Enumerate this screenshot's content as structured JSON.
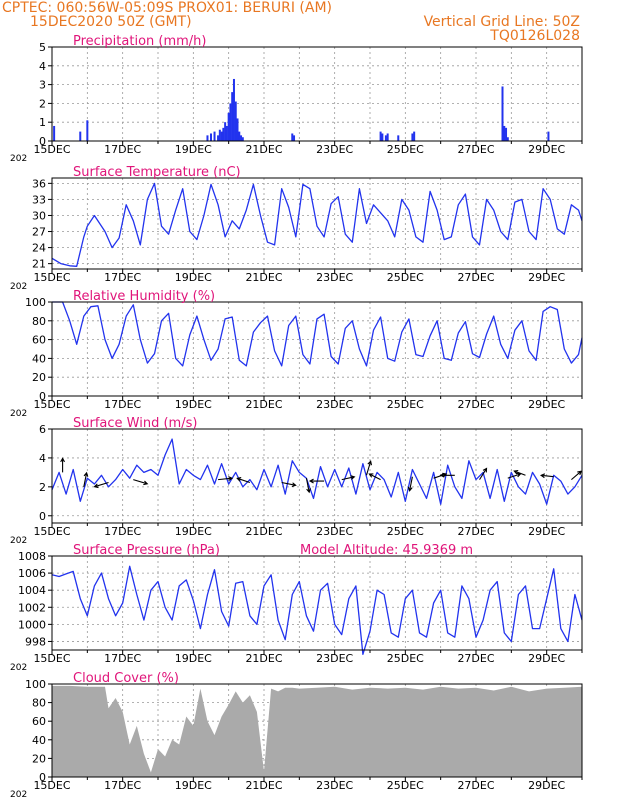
{
  "header": {
    "line1": "CPTEC:    060:56W-05:09S   PROX01: BERURI (AM)",
    "line2": "15DEC2020 50Z (GMT)",
    "grid_note": "Vertical Grid Line: 50Z",
    "code": "TQ0126L028"
  },
  "colors": {
    "header": "#e87722",
    "panel_title": "#e0157a",
    "line": "#2233ee",
    "cloud": "#aaaaaa",
    "grid": "#999999"
  },
  "x_ticks": [
    "15DEC",
    "17DEC",
    "19DEC",
    "21DEC",
    "23DEC",
    "25DEC",
    "27DEC",
    "29DEC"
  ],
  "x_year_stub": "202",
  "chart_data": [
    {
      "type": "bar",
      "title": "Precipitation (mm/h)",
      "x_unit": "days from 15DEC2020 00Z",
      "xlim": [
        0,
        15
      ],
      "ylim": [
        0,
        5
      ],
      "yticks": [
        0,
        1,
        2,
        3,
        4,
        5
      ],
      "x": [
        0.06,
        0.8,
        1.0,
        4.4,
        4.5,
        4.6,
        4.7,
        4.75,
        4.8,
        4.85,
        4.9,
        4.95,
        5.0,
        5.05,
        5.1,
        5.15,
        5.2,
        5.25,
        5.3,
        5.35,
        5.4,
        6.8,
        6.85,
        9.3,
        9.35,
        9.45,
        9.5,
        9.8,
        10.2,
        10.25,
        12.75,
        12.8,
        12.85,
        12.9,
        14.05
      ],
      "values": [
        0.8,
        0.5,
        1.1,
        0.3,
        0.4,
        0.5,
        0.3,
        0.6,
        0.5,
        0.7,
        1.0,
        0.8,
        1.5,
        2.0,
        2.6,
        3.3,
        2.1,
        1.2,
        0.5,
        0.3,
        0.2,
        0.4,
        0.3,
        0.5,
        0.4,
        0.3,
        0.4,
        0.3,
        0.4,
        0.5,
        2.9,
        0.8,
        0.7,
        0.2,
        0.5
      ]
    },
    {
      "type": "line",
      "title": "Surface Temperature (nC)",
      "xlim": [
        0,
        15
      ],
      "ylim": [
        20,
        37
      ],
      "yticks": [
        21,
        24,
        27,
        30,
        33,
        36
      ],
      "x": [
        0,
        0.25,
        0.5,
        0.7,
        0.9,
        1.0,
        1.2,
        1.5,
        1.7,
        1.9,
        2.1,
        2.3,
        2.5,
        2.7,
        2.9,
        3.1,
        3.3,
        3.5,
        3.7,
        3.9,
        4.1,
        4.3,
        4.5,
        4.7,
        4.9,
        5.1,
        5.3,
        5.5,
        5.7,
        5.9,
        6.1,
        6.3,
        6.5,
        6.7,
        6.9,
        7.1,
        7.3,
        7.5,
        7.7,
        7.9,
        8.1,
        8.3,
        8.5,
        8.7,
        8.9,
        9.1,
        9.3,
        9.5,
        9.7,
        9.9,
        10.1,
        10.3,
        10.5,
        10.7,
        10.9,
        11.1,
        11.3,
        11.5,
        11.7,
        11.9,
        12.1,
        12.3,
        12.5,
        12.7,
        12.9,
        13.1,
        13.3,
        13.5,
        13.7,
        13.9,
        14.1,
        14.3,
        14.5,
        14.7,
        14.9,
        15
      ],
      "values": [
        22,
        21,
        20.6,
        20.5,
        26,
        28,
        30,
        27,
        24,
        25.8,
        32,
        29,
        24.5,
        33,
        36,
        28,
        26.5,
        31,
        35,
        27,
        25.5,
        30,
        35.8,
        32,
        26,
        29,
        27.5,
        31,
        35.8,
        30,
        25,
        24.5,
        35,
        31.5,
        26,
        35.8,
        35,
        28,
        26,
        32.2,
        33.5,
        26.5,
        25,
        35,
        28.5,
        32,
        30.5,
        29,
        26,
        33,
        31,
        26,
        25,
        34.5,
        31,
        25.5,
        26,
        32,
        34,
        26,
        24.5,
        33,
        31,
        27,
        25.5,
        32.5,
        33,
        27,
        25.5,
        35,
        33,
        27.5,
        26.5,
        32,
        31,
        29
      ]
    },
    {
      "type": "line",
      "title": "Relative Humidity (%)",
      "xlim": [
        0,
        15
      ],
      "ylim": [
        0,
        100
      ],
      "yticks": [
        0,
        20,
        40,
        60,
        80,
        100
      ],
      "x": [
        0,
        0.3,
        0.5,
        0.7,
        0.9,
        1.1,
        1.3,
        1.5,
        1.7,
        1.9,
        2.1,
        2.3,
        2.5,
        2.7,
        2.9,
        3.1,
        3.3,
        3.5,
        3.7,
        3.9,
        4.1,
        4.3,
        4.5,
        4.7,
        4.9,
        5.1,
        5.3,
        5.5,
        5.7,
        5.9,
        6.1,
        6.3,
        6.5,
        6.7,
        6.9,
        7.1,
        7.3,
        7.5,
        7.7,
        7.9,
        8.1,
        8.3,
        8.5,
        8.7,
        8.9,
        9.1,
        9.3,
        9.5,
        9.7,
        9.9,
        10.1,
        10.3,
        10.5,
        10.7,
        10.9,
        11.1,
        11.3,
        11.5,
        11.7,
        11.9,
        12.1,
        12.3,
        12.5,
        12.7,
        12.9,
        13.1,
        13.3,
        13.5,
        13.7,
        13.9,
        14.1,
        14.3,
        14.5,
        14.7,
        14.9,
        15
      ],
      "values": [
        100,
        100,
        80,
        55,
        85,
        95,
        96,
        60,
        40,
        55,
        85,
        97,
        60,
        35,
        45,
        80,
        88,
        40,
        32,
        65,
        85,
        60,
        38,
        50,
        82,
        84,
        38,
        32,
        68,
        78,
        85,
        48,
        32,
        75,
        85,
        44,
        34,
        82,
        87,
        42,
        34,
        72,
        80,
        50,
        32,
        70,
        84,
        40,
        37,
        68,
        82,
        44,
        42,
        64,
        80,
        40,
        38,
        67,
        79,
        45,
        41,
        66,
        85,
        55,
        40,
        70,
        80,
        48,
        38,
        90,
        95,
        92,
        50,
        35,
        44,
        62
      ]
    },
    {
      "type": "line",
      "title": "Surface Wind (m/s)",
      "xlim": [
        0,
        15
      ],
      "ylim": [
        -0.5,
        6
      ],
      "yticks": [
        0,
        2,
        4,
        6
      ],
      "x": [
        0,
        0.2,
        0.4,
        0.6,
        0.8,
        1.0,
        1.2,
        1.4,
        1.6,
        1.8,
        2.0,
        2.2,
        2.4,
        2.6,
        2.8,
        3.0,
        3.2,
        3.4,
        3.6,
        3.8,
        4.0,
        4.2,
        4.4,
        4.6,
        4.8,
        5.0,
        5.2,
        5.4,
        5.6,
        5.8,
        6.0,
        6.2,
        6.4,
        6.6,
        6.8,
        7.0,
        7.2,
        7.4,
        7.6,
        7.8,
        8.0,
        8.2,
        8.4,
        8.6,
        8.8,
        9.0,
        9.2,
        9.4,
        9.6,
        9.8,
        10.0,
        10.2,
        10.4,
        10.6,
        10.8,
        11.0,
        11.2,
        11.4,
        11.6,
        11.8,
        12.0,
        12.2,
        12.4,
        12.6,
        12.8,
        13.0,
        13.2,
        13.4,
        13.6,
        13.8,
        14.0,
        14.2,
        14.4,
        14.6,
        14.8,
        15.0
      ],
      "values": [
        1.8,
        3.0,
        1.5,
        3.2,
        1.0,
        2.6,
        2.2,
        2.8,
        2.0,
        2.5,
        3.2,
        2.6,
        3.5,
        3.0,
        3.2,
        2.8,
        4.2,
        5.3,
        2.2,
        3.2,
        2.8,
        2.5,
        3.5,
        2.2,
        3.6,
        2.2,
        3.0,
        2.0,
        2.5,
        1.8,
        3.2,
        2.0,
        3.5,
        1.5,
        3.8,
        3.0,
        2.6,
        1.2,
        3.4,
        2.0,
        3.2,
        2.0,
        3.3,
        1.5,
        3.6,
        1.8,
        3.0,
        2.5,
        1.3,
        3.0,
        1.0,
        3.2,
        2.2,
        1.2,
        3.0,
        0.8,
        3.5,
        2.0,
        1.2,
        3.8,
        2.5,
        3.0,
        1.2,
        3.2,
        1.0,
        3.0,
        2.0,
        1.5,
        3.0,
        2.2,
        0.8,
        2.8,
        2.4,
        1.5,
        2.0,
        2.8
      ],
      "vectors": [
        {
          "t": 0.3,
          "s": 3.0,
          "u": 0,
          "v": 1
        },
        {
          "t": 0.9,
          "s": 2.0,
          "u": 0.2,
          "v": 1
        },
        {
          "t": 1.6,
          "s": 2.3,
          "u": -1,
          "v": -0.3
        },
        {
          "t": 2.3,
          "s": 2.5,
          "u": 1,
          "v": -0.3
        },
        {
          "t": 4.7,
          "s": 2.5,
          "u": 1,
          "v": 0.1
        },
        {
          "t": 5.6,
          "s": 2.3,
          "u": -0.9,
          "v": 0.3
        },
        {
          "t": 6.5,
          "s": 2.3,
          "u": 1,
          "v": -0.2
        },
        {
          "t": 7.2,
          "s": 2.6,
          "u": 0.2,
          "v": -1
        },
        {
          "t": 7.7,
          "s": 2.4,
          "u": -1,
          "v": 0
        },
        {
          "t": 8.2,
          "s": 2.5,
          "u": 0.9,
          "v": 0.2
        },
        {
          "t": 8.9,
          "s": 2.8,
          "u": 0.3,
          "v": 1
        },
        {
          "t": 9.3,
          "s": 2.5,
          "u": -0.8,
          "v": 0.4
        },
        {
          "t": 10.2,
          "s": 2.7,
          "u": -0.2,
          "v": -1
        },
        {
          "t": 10.8,
          "s": 2.6,
          "u": 0.9,
          "v": 0.3
        },
        {
          "t": 11.4,
          "s": 2.8,
          "u": -1,
          "v": 0
        },
        {
          "t": 12.1,
          "s": 2.5,
          "u": 0.5,
          "v": 0.8
        },
        {
          "t": 12.9,
          "s": 2.6,
          "u": 0.9,
          "v": 0.3
        },
        {
          "t": 13.4,
          "s": 2.8,
          "u": -0.8,
          "v": 0.3
        },
        {
          "t": 14.2,
          "s": 2.7,
          "u": -0.9,
          "v": 0.1
        },
        {
          "t": 14.7,
          "s": 2.5,
          "u": 0.7,
          "v": 0.6
        }
      ]
    },
    {
      "type": "line",
      "title": "Surface Pressure (hPa)",
      "annotation": "Model Altitude: 45.9369 m",
      "xlim": [
        0,
        15
      ],
      "ylim": [
        997,
        1008
      ],
      "yticks": [
        998,
        1000,
        1002,
        1004,
        1006,
        1008
      ],
      "x": [
        0,
        0.2,
        0.4,
        0.6,
        0.8,
        1.0,
        1.2,
        1.4,
        1.6,
        1.8,
        2.0,
        2.2,
        2.4,
        2.6,
        2.8,
        3.0,
        3.2,
        3.4,
        3.6,
        3.8,
        4.0,
        4.2,
        4.4,
        4.6,
        4.8,
        5.0,
        5.2,
        5.4,
        5.6,
        5.8,
        6.0,
        6.2,
        6.4,
        6.6,
        6.8,
        7.0,
        7.2,
        7.4,
        7.6,
        7.8,
        8.0,
        8.2,
        8.4,
        8.6,
        8.8,
        9.0,
        9.2,
        9.4,
        9.6,
        9.8,
        10.0,
        10.2,
        10.4,
        10.6,
        10.8,
        11.0,
        11.2,
        11.4,
        11.6,
        11.8,
        12.0,
        12.2,
        12.4,
        12.6,
        12.8,
        13.0,
        13.2,
        13.4,
        13.6,
        13.8,
        14.0,
        14.2,
        14.4,
        14.6,
        14.8,
        15.0
      ],
      "values": [
        1005.8,
        1005.6,
        1005.9,
        1006.2,
        1003.0,
        1001.0,
        1004.5,
        1006.0,
        1003.0,
        1001.0,
        1002.5,
        1006.8,
        1003.5,
        1000.5,
        1004.0,
        1005.0,
        1002.0,
        1000.5,
        1004.5,
        1005.2,
        1002.8,
        999.5,
        1003.5,
        1006.4,
        1001.5,
        999.8,
        1004.8,
        1005.0,
        1001.0,
        1000.0,
        1004.5,
        1005.8,
        1000.5,
        998.2,
        1003.5,
        1005.0,
        1001.0,
        999.2,
        1004.0,
        1004.8,
        1000.0,
        998.8,
        1003.0,
        1004.5,
        996.5,
        999.2,
        1004.0,
        1003.5,
        999.0,
        998.5,
        1003.0,
        1004.0,
        999.0,
        998.5,
        1002.5,
        1004.0,
        999.0,
        998.5,
        1004.5,
        1003.0,
        998.5,
        1000.5,
        1004.0,
        1005.0,
        999.0,
        998.0,
        1003.5,
        1004.5,
        999.5,
        999.5,
        1003.0,
        1006.5,
        999.5,
        998.0,
        1003.5,
        1000.5
      ]
    },
    {
      "type": "area",
      "title": "Cloud Cover (%)",
      "xlim": [
        0,
        15
      ],
      "ylim": [
        0,
        100
      ],
      "yticks": [
        0,
        20,
        40,
        60,
        80,
        100
      ],
      "x": [
        0,
        0.5,
        1.0,
        1.5,
        1.6,
        1.8,
        2.0,
        2.2,
        2.4,
        2.6,
        2.8,
        3.0,
        3.2,
        3.4,
        3.6,
        3.8,
        4.0,
        4.2,
        4.4,
        4.6,
        4.8,
        5.0,
        5.2,
        5.4,
        5.6,
        5.8,
        6.0,
        6.2,
        6.4,
        6.6,
        6.8,
        7.0,
        7.5,
        8.0,
        8.5,
        9.0,
        9.5,
        10.0,
        10.5,
        11.0,
        11.5,
        12.0,
        12.5,
        13.0,
        13.5,
        14.0,
        14.5,
        15.0
      ],
      "values": [
        98,
        98,
        97,
        97,
        74,
        85,
        70,
        35,
        55,
        25,
        5,
        30,
        22,
        40,
        35,
        65,
        55,
        95,
        60,
        45,
        65,
        78,
        92,
        80,
        88,
        70,
        6,
        95,
        92,
        96,
        96,
        95,
        96,
        97,
        94,
        96,
        95,
        96,
        94,
        97,
        95,
        96,
        93,
        97,
        92,
        95,
        96,
        97
      ]
    }
  ]
}
